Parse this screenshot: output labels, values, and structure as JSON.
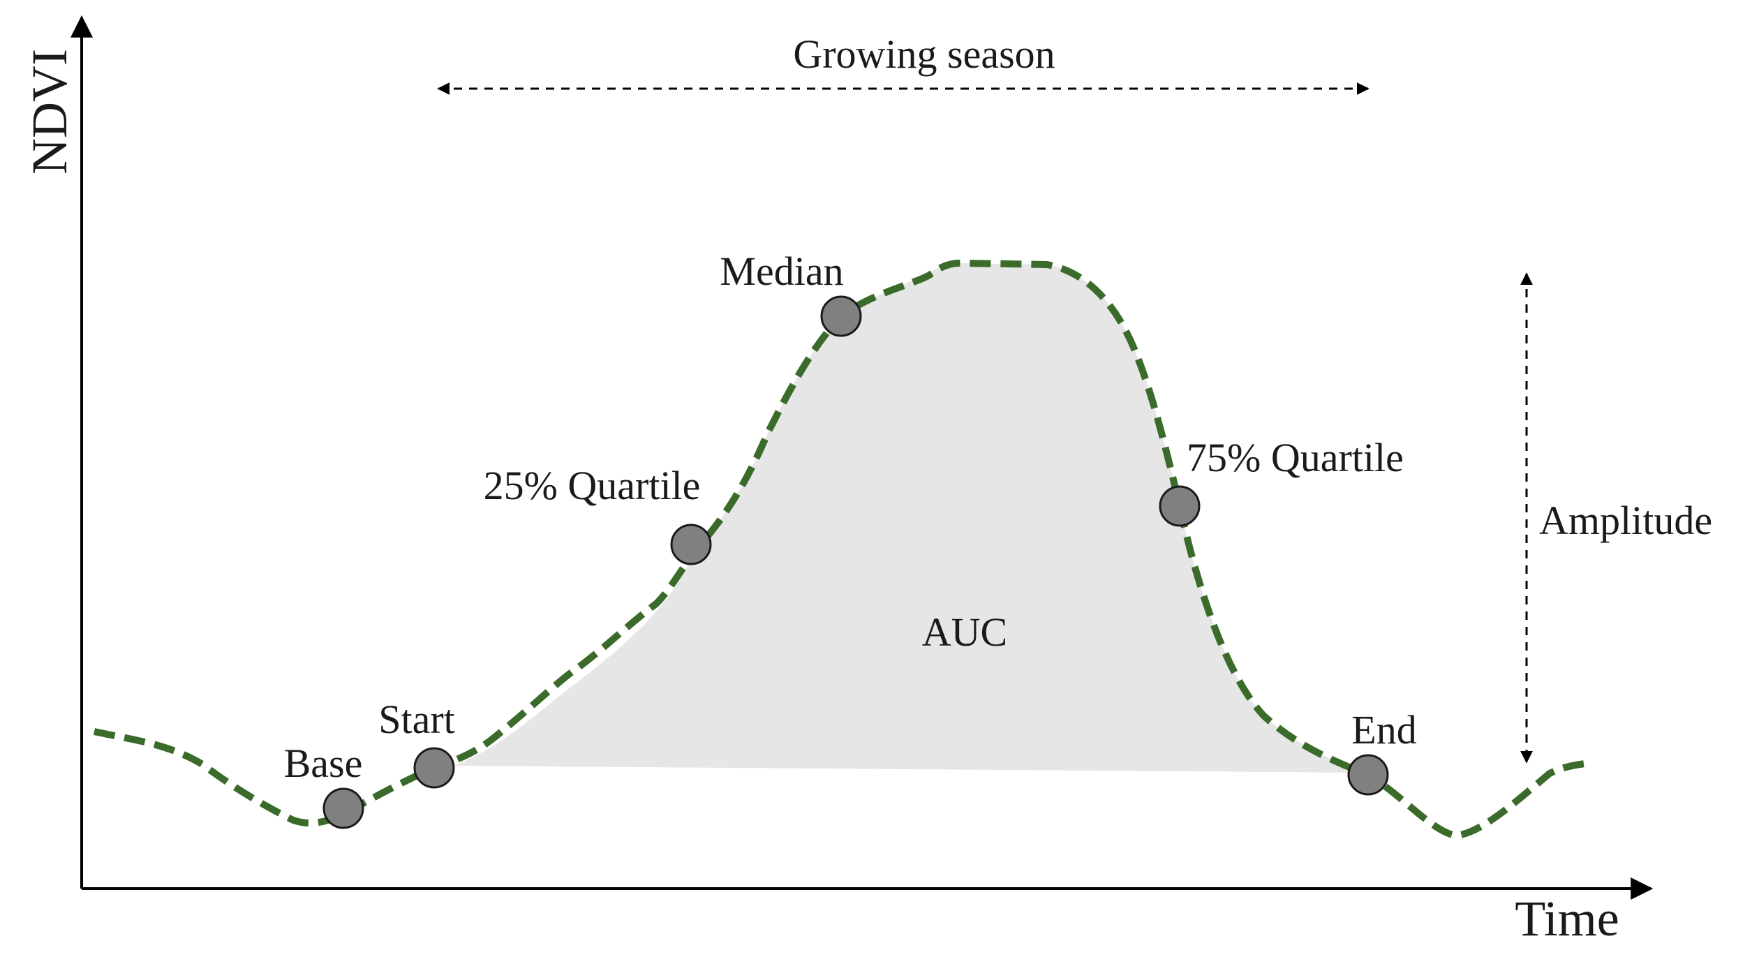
{
  "axes": {
    "y_label": "NDVI",
    "x_label": "Time"
  },
  "annotations": {
    "growing_season": "Growing season",
    "amplitude": "Amplitude",
    "auc": "AUC"
  },
  "points": {
    "base": "Base",
    "start": "Start",
    "q25": "25% Quartile",
    "median": "Median",
    "q75": "75% Quartile",
    "end": "End"
  },
  "colors": {
    "curve": "#3a6b2a",
    "auc_fill": "#e6e6e6",
    "marker_fill": "#808080",
    "marker_stroke": "#1a1a1a",
    "axis": "#000000"
  }
}
